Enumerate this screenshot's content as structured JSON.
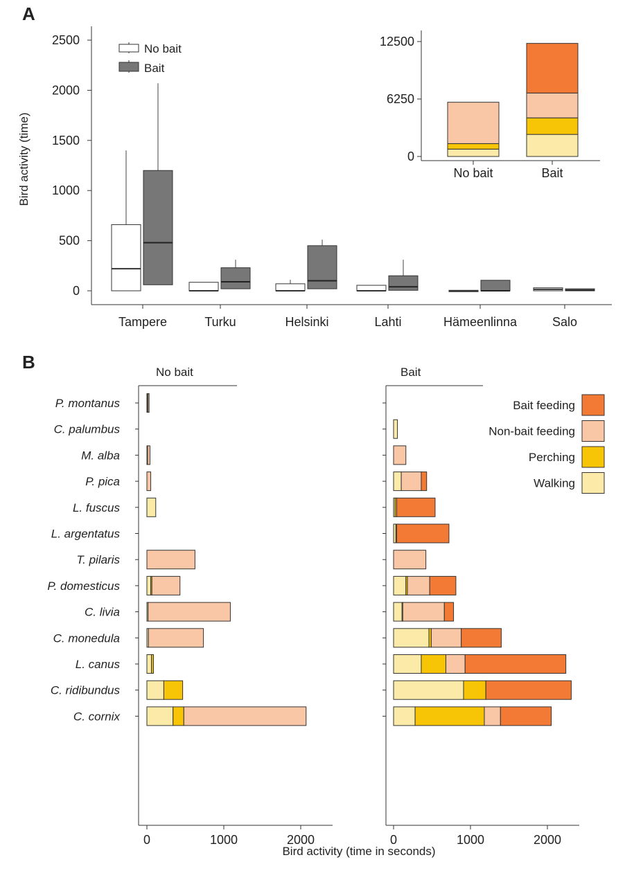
{
  "panel_a_label": "A",
  "panel_b_label": "B",
  "colors": {
    "no_bait_box": "#ffffff",
    "bait_box": "#777777",
    "bait_feeding": "#f37a35",
    "non_bait_feeding": "#fac7a6",
    "perching": "#f8c406",
    "walking": "#fbeaa8"
  },
  "chart_data": [
    {
      "type": "box",
      "ylabel": "Bird activity (time)",
      "ylim": [
        0,
        2500
      ],
      "yticks": [
        0,
        500,
        1000,
        1500,
        2000,
        2500
      ],
      "categories": [
        "Tampere",
        "Turku",
        "Helsinki",
        "Lahti",
        "Hämeenlinna",
        "Salo"
      ],
      "legend": {
        "position": "top-left",
        "entries": [
          "No bait",
          "Bait"
        ]
      },
      "series": [
        {
          "name": "No bait",
          "boxes": [
            {
              "min": 0,
              "q1": 0,
              "median": 220,
              "q3": 660,
              "max": 1400
            },
            {
              "min": 0,
              "q1": 0,
              "median": 0,
              "q3": 85,
              "max": 85
            },
            {
              "min": 0,
              "q1": 0,
              "median": 0,
              "q3": 70,
              "max": 110
            },
            {
              "min": 0,
              "q1": 0,
              "median": 0,
              "q3": 55,
              "max": 55
            },
            {
              "min": 0,
              "q1": 0,
              "median": 0,
              "q3": 5,
              "max": 5
            },
            {
              "min": 0,
              "q1": 0,
              "median": 15,
              "q3": 30,
              "max": 30
            }
          ]
        },
        {
          "name": "Bait",
          "boxes": [
            {
              "min": 0,
              "q1": 60,
              "median": 480,
              "q3": 1200,
              "max": 2070
            },
            {
              "min": 0,
              "q1": 20,
              "median": 90,
              "q3": 230,
              "max": 310
            },
            {
              "min": 0,
              "q1": 20,
              "median": 100,
              "q3": 450,
              "max": 510
            },
            {
              "min": 0,
              "q1": 5,
              "median": 40,
              "q3": 150,
              "max": 310
            },
            {
              "min": 0,
              "q1": 0,
              "median": 0,
              "q3": 105,
              "max": 105
            },
            {
              "min": 0,
              "q1": 0,
              "median": 5,
              "q3": 20,
              "max": 20
            }
          ]
        }
      ]
    },
    {
      "type": "bar",
      "stacked": true,
      "inset": true,
      "categories": [
        "No bait",
        "Bait"
      ],
      "ylim": [
        0,
        12500
      ],
      "yticks": [
        0,
        6250,
        12500
      ],
      "series": [
        {
          "name": "Walking",
          "values": [
            800,
            2400
          ]
        },
        {
          "name": "Perching",
          "values": [
            600,
            1800
          ]
        },
        {
          "name": "Non-bait feeding",
          "values": [
            4500,
            2700
          ]
        },
        {
          "name": "Bait feeding",
          "values": [
            0,
            5400
          ]
        }
      ]
    },
    {
      "type": "bar",
      "orientation": "horizontal",
      "stacked": true,
      "xlabel": "Bird activity (time in seconds)",
      "xticks": [
        0,
        1000,
        2000
      ],
      "species": [
        "P. montanus",
        "C. palumbus",
        "M. alba",
        "P. pica",
        "L. fuscus",
        "L. argentatus",
        "T. pilaris",
        "P. domesticus",
        "C. livia",
        "C. monedula",
        "L. canus",
        "C. ridibundus",
        "C. cornix"
      ],
      "legend": {
        "position": "top-right",
        "entries": [
          "Bait feeding",
          "Non-bait feeding",
          "Perching",
          "Walking"
        ]
      },
      "panels": [
        {
          "title": "No bait",
          "bars": [
            [
              {
                "name": "Walking",
                "value": 5
              },
              {
                "name": "Perching",
                "value": 10
              },
              {
                "name": "Non-bait feeding",
                "value": 5
              }
            ],
            [],
            [
              {
                "name": "Walking",
                "value": 10
              },
              {
                "name": "Non-bait feeding",
                "value": 30
              }
            ],
            [
              {
                "name": "Non-bait feeding",
                "value": 50
              }
            ],
            [
              {
                "name": "Walking",
                "value": 115
              }
            ],
            [],
            [
              {
                "name": "Non-bait feeding",
                "value": 625
              }
            ],
            [
              {
                "name": "Walking",
                "value": 50
              },
              {
                "name": "Perching",
                "value": 15
              },
              {
                "name": "Non-bait feeding",
                "value": 365
              }
            ],
            [
              {
                "name": "Walking",
                "value": 15
              },
              {
                "name": "Non-bait feeding",
                "value": 1070
              }
            ],
            [
              {
                "name": "Walking",
                "value": 20
              },
              {
                "name": "Non-bait feeding",
                "value": 715
              }
            ],
            [
              {
                "name": "Walking",
                "value": 60
              },
              {
                "name": "Perching",
                "value": 25
              }
            ],
            [
              {
                "name": "Walking",
                "value": 220
              },
              {
                "name": "Perching",
                "value": 245
              }
            ],
            [
              {
                "name": "Walking",
                "value": 340
              },
              {
                "name": "Perching",
                "value": 140
              },
              {
                "name": "Non-bait feeding",
                "value": 1590
              }
            ]
          ]
        },
        {
          "title": "Bait",
          "bars": [
            [],
            [
              {
                "name": "Walking",
                "value": 50
              }
            ],
            [
              {
                "name": "Non-bait feeding",
                "value": 160
              }
            ],
            [
              {
                "name": "Walking",
                "value": 100
              },
              {
                "name": "Non-bait feeding",
                "value": 260
              },
              {
                "name": "Bait feeding",
                "value": 70
              }
            ],
            [
              {
                "name": "Walking",
                "value": 20
              },
              {
                "name": "Perching",
                "value": 20
              },
              {
                "name": "Bait feeding",
                "value": 500
              }
            ],
            [
              {
                "name": "Walking",
                "value": 30
              },
              {
                "name": "Perching",
                "value": 10
              },
              {
                "name": "Bait feeding",
                "value": 680
              }
            ],
            [
              {
                "name": "Non-bait feeding",
                "value": 420
              }
            ],
            [
              {
                "name": "Walking",
                "value": 160
              },
              {
                "name": "Perching",
                "value": 20
              },
              {
                "name": "Non-bait feeding",
                "value": 290
              },
              {
                "name": "Bait feeding",
                "value": 340
              }
            ],
            [
              {
                "name": "Walking",
                "value": 110
              },
              {
                "name": "Perching",
                "value": 10
              },
              {
                "name": "Non-bait feeding",
                "value": 540
              },
              {
                "name": "Bait feeding",
                "value": 120
              }
            ],
            [
              {
                "name": "Walking",
                "value": 460
              },
              {
                "name": "Perching",
                "value": 30
              },
              {
                "name": "Non-bait feeding",
                "value": 390
              },
              {
                "name": "Bait feeding",
                "value": 520
              }
            ],
            [
              {
                "name": "Walking",
                "value": 360
              },
              {
                "name": "Perching",
                "value": 320
              },
              {
                "name": "Non-bait feeding",
                "value": 250
              },
              {
                "name": "Bait feeding",
                "value": 1310
              }
            ],
            [
              {
                "name": "Walking",
                "value": 910
              },
              {
                "name": "Perching",
                "value": 290
              },
              {
                "name": "Bait feeding",
                "value": 1110
              }
            ],
            [
              {
                "name": "Walking",
                "value": 280
              },
              {
                "name": "Perching",
                "value": 900
              },
              {
                "name": "Non-bait feeding",
                "value": 210
              },
              {
                "name": "Bait feeding",
                "value": 660
              }
            ]
          ]
        }
      ]
    }
  ]
}
